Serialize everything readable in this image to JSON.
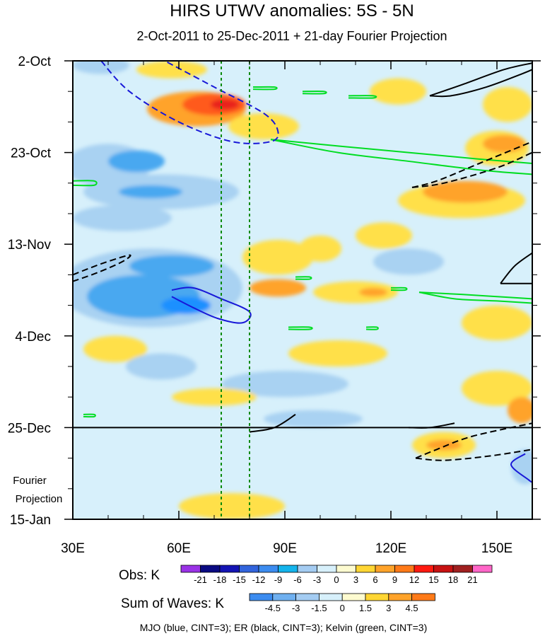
{
  "chart_data": {
    "type": "heatmap",
    "title": "HIRS UTWV anomalies: 5S - 5N",
    "subtitle": "2-Oct-2011 to 25-Dec-2011 + 21-day Fourier Projection",
    "x_ticks": [
      "30E",
      "60E",
      "90E",
      "120E",
      "150E"
    ],
    "x_tick_values": [
      30,
      60,
      90,
      120,
      150
    ],
    "xlim": [
      30,
      160
    ],
    "y_ticks": [
      "2-Oct",
      "23-Oct",
      "13-Nov",
      "4-Dec",
      "25-Dec",
      "15-Jan"
    ],
    "y_tick_days": [
      0,
      21,
      42,
      63,
      84,
      105
    ],
    "ylim_days": [
      0,
      105
    ],
    "projection_label_line1": "Fourier",
    "projection_label_line2": "Projection",
    "projection_start_day": 84,
    "reference_lines_lon": [
      72,
      80
    ],
    "colors": {
      "dry_strong": "#1e90ff",
      "dry": "#48a8f0",
      "dry_weak": "#a9d2f2",
      "dry_faint": "#d7f0fb",
      "neutral": "#fdfbd0",
      "wet_weak": "#ffe04a",
      "wet": "#ffa32a",
      "wet_strong": "#ff5a1a",
      "wet_extreme": "#e8231a",
      "mjo": "#1818d8",
      "er": "#000000",
      "kelvin": "#00dd22",
      "reference": "#0a8a0a"
    },
    "obs_legend": {
      "label": "Obs: K",
      "levels": [
        "-21",
        "-18",
        "-15",
        "-12",
        "-9",
        "-6",
        "-3",
        "0",
        "3",
        "6",
        "9",
        "12",
        "15",
        "18",
        "21"
      ],
      "colors": [
        "#9a32e6",
        "#0a0a82",
        "#1414b4",
        "#3264dc",
        "#3c8cf0",
        "#14b4ec",
        "#a4ccf2",
        "#d7f0fb",
        "#fdfbd0",
        "#ffd634",
        "#ffa32a",
        "#ff7a18",
        "#ff1a10",
        "#c81212",
        "#a02020",
        "#ff66c8"
      ]
    },
    "waves_legend": {
      "label": "Sum of Waves: K",
      "levels": [
        "-4.5",
        "-3",
        "-1.5",
        "0",
        "1.5",
        "3",
        "4.5"
      ],
      "colors": [
        "#3c8cf0",
        "#6fb0f0",
        "#a4ccf2",
        "#d7f0fb",
        "#fdfbd0",
        "#ffd634",
        "#ffa32a",
        "#ff7a18"
      ]
    },
    "footer": "MJO (blue, CINT=3); ER (black, CINT=3); Kelvin (green, CINT=3)",
    "mjo_contours": [
      {
        "sign": "negative",
        "points": [
          [
            38,
            0
          ],
          [
            46,
            7
          ],
          [
            60,
            14
          ],
          [
            75,
            18.5
          ],
          [
            86,
            18.5
          ],
          [
            88,
            16
          ],
          [
            84,
            12
          ],
          [
            70,
            6
          ],
          [
            56,
            0
          ]
        ]
      },
      {
        "sign": "positive",
        "points": [
          [
            58,
            52.5
          ],
          [
            64,
            52
          ],
          [
            72,
            54.5
          ],
          [
            80,
            57.5
          ],
          [
            78,
            60
          ],
          [
            71,
            59
          ],
          [
            64,
            56.5
          ],
          [
            58,
            54
          ]
        ]
      },
      {
        "sign": "positive",
        "points": [
          [
            158,
            90
          ],
          [
            154,
            92.5
          ],
          [
            159,
            96
          ],
          [
            160,
            96.5
          ]
        ]
      }
    ],
    "er_contours": [
      {
        "sign": "positive",
        "points": [
          [
            131,
            8
          ],
          [
            140,
            5.5
          ],
          [
            152,
            2
          ],
          [
            160,
            0.5
          ]
        ]
      },
      {
        "sign": "positive",
        "points": [
          [
            131,
            8
          ],
          [
            137,
            8
          ],
          [
            147,
            6
          ],
          [
            157,
            3
          ],
          [
            160,
            2
          ]
        ]
      },
      {
        "sign": "negative",
        "points": [
          [
            126,
            29
          ],
          [
            133,
            27.5
          ],
          [
            145,
            23.5
          ],
          [
            160,
            18.5
          ]
        ]
      },
      {
        "sign": "negative",
        "points": [
          [
            126,
            29
          ],
          [
            135,
            28
          ],
          [
            150,
            24.5
          ],
          [
            160,
            21
          ]
        ]
      },
      {
        "sign": "negative",
        "points": [
          [
            30,
            49
          ],
          [
            38,
            46.5
          ],
          [
            46,
            44.5
          ],
          [
            44,
            46
          ],
          [
            37,
            48.5
          ],
          [
            30,
            50.5
          ]
        ]
      },
      {
        "sign": "positive",
        "points": [
          [
            151,
            51
          ],
          [
            155,
            47
          ],
          [
            160,
            44
          ]
        ]
      },
      {
        "sign": "positive",
        "points": [
          [
            151,
            51
          ],
          [
            156,
            51
          ],
          [
            160,
            51
          ]
        ]
      },
      {
        "sign": "positive",
        "points": [
          [
            80,
            85
          ],
          [
            87,
            84
          ],
          [
            93,
            81
          ]
        ]
      },
      {
        "sign": "positive",
        "points": [
          [
            125,
            84
          ],
          [
            131,
            84
          ],
          [
            138,
            83
          ]
        ]
      },
      {
        "sign": "negative",
        "points": [
          [
            127,
            91
          ],
          [
            133,
            89
          ],
          [
            143,
            86
          ],
          [
            160,
            83
          ]
        ]
      },
      {
        "sign": "negative",
        "points": [
          [
            127,
            91
          ],
          [
            135,
            91.5
          ],
          [
            148,
            90.5
          ],
          [
            160,
            89
          ]
        ]
      }
    ],
    "kelvin_contours": [
      {
        "points": [
          [
            86,
            18
          ],
          [
            105,
            19.5
          ],
          [
            125,
            21
          ],
          [
            145,
            22.5
          ],
          [
            160,
            23.5
          ]
        ]
      },
      {
        "points": [
          [
            86,
            18
          ],
          [
            105,
            21
          ],
          [
            125,
            23
          ],
          [
            145,
            25
          ],
          [
            160,
            26
          ]
        ]
      },
      {
        "points": [
          [
            30,
            27.5
          ],
          [
            36,
            27.5
          ],
          [
            36,
            28.5
          ],
          [
            30,
            28.5
          ]
        ]
      },
      {
        "points": [
          [
            128,
            53
          ],
          [
            138,
            54.5
          ],
          [
            150,
            55
          ],
          [
            160,
            55.5
          ]
        ]
      },
      {
        "points": [
          [
            128,
            53
          ],
          [
            140,
            53.5
          ],
          [
            150,
            54
          ],
          [
            160,
            54.5
          ]
        ]
      },
      {
        "points": [
          [
            81,
            6
          ],
          [
            87,
            6
          ],
          [
            87,
            6.5
          ],
          [
            81,
            6.5
          ]
        ]
      },
      {
        "points": [
          [
            95,
            7
          ],
          [
            101,
            7
          ],
          [
            101,
            7.5
          ],
          [
            95,
            7.5
          ]
        ]
      },
      {
        "points": [
          [
            108,
            8
          ],
          [
            115,
            8
          ],
          [
            115,
            8.5
          ],
          [
            108,
            8.5
          ]
        ]
      },
      {
        "points": [
          [
            93,
            49.5
          ],
          [
            97,
            49.5
          ],
          [
            97,
            50
          ],
          [
            93,
            50
          ]
        ]
      },
      {
        "points": [
          [
            91,
            61
          ],
          [
            97,
            61
          ],
          [
            97,
            61.5
          ],
          [
            91,
            61.5
          ]
        ]
      },
      {
        "points": [
          [
            113,
            61
          ],
          [
            116,
            61
          ],
          [
            116,
            61.5
          ],
          [
            113,
            61.5
          ]
        ]
      },
      {
        "points": [
          [
            120,
            52
          ],
          [
            124,
            52
          ],
          [
            124,
            52.5
          ],
          [
            120,
            52.5
          ]
        ]
      },
      {
        "points": [
          [
            33,
            81
          ],
          [
            36,
            81
          ],
          [
            36,
            81.5
          ],
          [
            33,
            81.5
          ]
        ]
      }
    ],
    "anomaly_blobs": [
      {
        "level": "wet",
        "lon": 65,
        "day": 11,
        "rlon": 14,
        "rday": 4
      },
      {
        "level": "wet_strong",
        "lon": 70,
        "day": 10,
        "rlon": 9,
        "rday": 2.5
      },
      {
        "level": "wet_extreme",
        "lon": 73,
        "day": 10,
        "rlon": 4,
        "rday": 1.2
      },
      {
        "level": "wet_weak",
        "lon": 58,
        "day": 2,
        "rlon": 10,
        "rday": 2
      },
      {
        "level": "wet_weak",
        "lon": 84,
        "day": 15,
        "rlon": 10,
        "rday": 3
      },
      {
        "level": "dry_weak",
        "lon": 38,
        "day": 1,
        "rlon": 8,
        "rday": 2
      },
      {
        "level": "dry_weak",
        "lon": 40,
        "day": 24,
        "rlon": 12,
        "rday": 5
      },
      {
        "level": "dry",
        "lon": 48,
        "day": 23,
        "rlon": 8,
        "rday": 2.5
      },
      {
        "level": "dry_weak",
        "lon": 55,
        "day": 30,
        "rlon": 22,
        "rday": 4
      },
      {
        "level": "dry",
        "lon": 52,
        "day": 30,
        "rlon": 9,
        "rday": 1.5
      },
      {
        "level": "dry_weak",
        "lon": 44,
        "day": 36,
        "rlon": 14,
        "rday": 3
      },
      {
        "level": "dry_weak",
        "lon": 52,
        "day": 52,
        "rlon": 26,
        "rday": 9
      },
      {
        "level": "dry",
        "lon": 50,
        "day": 54,
        "rlon": 16,
        "rday": 5
      },
      {
        "level": "dry_strong",
        "lon": 62,
        "day": 56,
        "rlon": 7,
        "rday": 2
      },
      {
        "level": "dry",
        "lon": 58,
        "day": 47,
        "rlon": 12,
        "rday": 2.5
      },
      {
        "level": "wet_weak",
        "lon": 88,
        "day": 45,
        "rlon": 10,
        "rday": 4
      },
      {
        "level": "wet_weak",
        "lon": 100,
        "day": 43,
        "rlon": 6,
        "rday": 3
      },
      {
        "level": "wet",
        "lon": 88,
        "day": 52,
        "rlon": 8,
        "rday": 2
      },
      {
        "level": "wet_weak",
        "lon": 110,
        "day": 53,
        "rlon": 12,
        "rday": 2.5
      },
      {
        "level": "wet",
        "lon": 115,
        "day": 53,
        "rlon": 4,
        "rday": 1
      },
      {
        "level": "wet_weak",
        "lon": 140,
        "day": 32,
        "rlon": 18,
        "rday": 4
      },
      {
        "level": "wet",
        "lon": 141,
        "day": 30,
        "rlon": 12,
        "rday": 2.5
      },
      {
        "level": "wet_weak",
        "lon": 150,
        "day": 20,
        "rlon": 9,
        "rday": 4
      },
      {
        "level": "wet",
        "lon": 152,
        "day": 19,
        "rlon": 6,
        "rday": 2
      },
      {
        "level": "wet_weak",
        "lon": 153,
        "day": 10,
        "rlon": 7,
        "rday": 4
      },
      {
        "level": "wet_weak",
        "lon": 122,
        "day": 7,
        "rlon": 8,
        "rday": 3
      },
      {
        "level": "wet_weak",
        "lon": 118,
        "day": 40,
        "rlon": 8,
        "rday": 3
      },
      {
        "level": "dry_weak",
        "lon": 125,
        "day": 46,
        "rlon": 10,
        "rday": 3
      },
      {
        "level": "wet_weak",
        "lon": 150,
        "day": 60,
        "rlon": 10,
        "rday": 4
      },
      {
        "level": "wet_weak",
        "lon": 105,
        "day": 67,
        "rlon": 14,
        "rday": 3
      },
      {
        "level": "wet_weak",
        "lon": 42,
        "day": 66,
        "rlon": 9,
        "rday": 3
      },
      {
        "level": "dry_weak",
        "lon": 55,
        "day": 70,
        "rlon": 10,
        "rday": 3
      },
      {
        "level": "dry_weak",
        "lon": 90,
        "day": 74,
        "rlon": 18,
        "rday": 3
      },
      {
        "level": "wet_weak",
        "lon": 70,
        "day": 77,
        "rlon": 12,
        "rday": 2
      },
      {
        "level": "wet_weak",
        "lon": 150,
        "day": 75,
        "rlon": 10,
        "rday": 4
      },
      {
        "level": "dry_weak",
        "lon": 98,
        "day": 82,
        "rlon": 14,
        "rday": 2
      },
      {
        "level": "wet",
        "lon": 157,
        "day": 80,
        "rlon": 4,
        "rday": 3
      },
      {
        "level": "wet_weak",
        "lon": 135,
        "day": 88,
        "rlon": 9,
        "rday": 3
      },
      {
        "level": "wet",
        "lon": 135,
        "day": 88,
        "rlon": 5,
        "rday": 1.2
      },
      {
        "level": "wet_weak",
        "lon": 75,
        "day": 102,
        "rlon": 15,
        "rday": 3
      },
      {
        "level": "dry_weak",
        "lon": 158,
        "day": 93,
        "rlon": 4,
        "rday": 4
      }
    ]
  }
}
